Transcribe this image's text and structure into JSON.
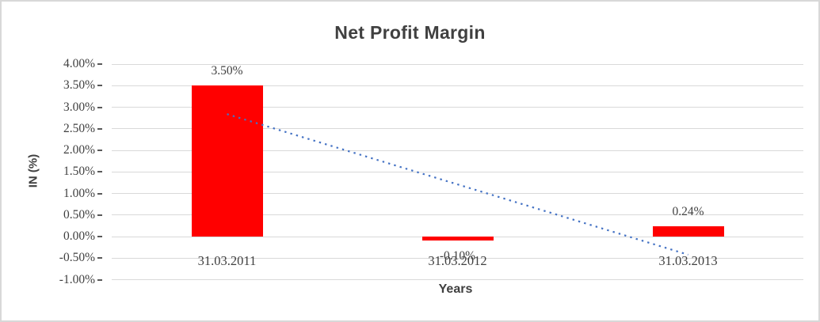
{
  "chart": {
    "title": "Net Profit Margin",
    "y_axis_title": "IN (%)",
    "x_axis_title": "Years"
  },
  "chart_data": {
    "type": "bar",
    "title": "Net Profit Margin",
    "xlabel": "Years",
    "ylabel": "IN (%)",
    "categories": [
      "31.03.2011",
      "31.03.2012",
      "31.03.2013"
    ],
    "values": [
      3.5,
      -0.1,
      0.24
    ],
    "value_labels": [
      "3.50%",
      "-0.10%",
      "0.24%"
    ],
    "ylim": [
      -1.0,
      4.0
    ],
    "ytick_step": 0.5,
    "ytick_labels": [
      "4.00%",
      "3.50%",
      "3.00%",
      "2.50%",
      "2.00%",
      "1.50%",
      "1.00%",
      "0.50%",
      "0.00%",
      "-0.50%",
      "-1.00%"
    ],
    "grid": true,
    "legend_position": "none",
    "bar_color": "#FF0000",
    "gridline_color": "#D9D9D9",
    "tick_color": "#595959",
    "text_color": "#404040",
    "trendline": {
      "type": "linear",
      "style": "dotted",
      "color": "#4472C4",
      "start_value": 2.84,
      "end_value": -0.42
    }
  }
}
